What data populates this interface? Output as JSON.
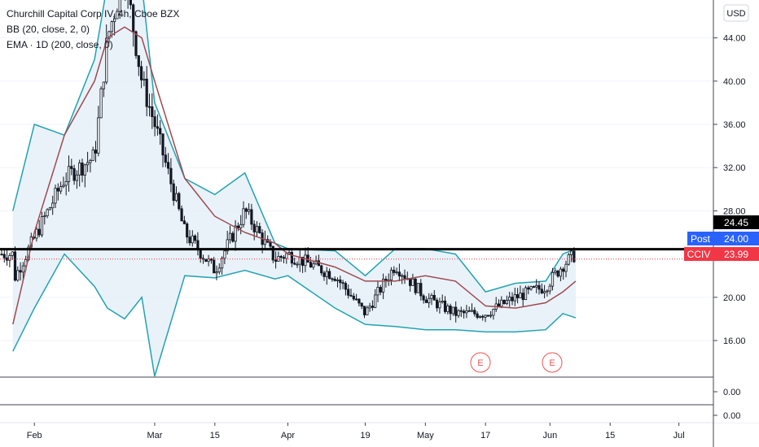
{
  "header": {
    "symbol_line": "Churchill Capital Corp IV, 4h, Cboe BZX",
    "indicator_bb": "BB (20, close, 2, 0)",
    "indicator_ema": "EMA · 1D (200, close, 0)"
  },
  "price_axis": {
    "currency": "USD",
    "labels": [
      "44.00",
      "40.00",
      "36.00",
      "32.00",
      "28.00",
      "20.00",
      "16.00"
    ],
    "sub_labels": [
      "0.00",
      "0.00"
    ]
  },
  "markers": {
    "level": {
      "value": "24.45",
      "color": "#000000"
    },
    "post": {
      "label": "Post",
      "value": "24.00",
      "color": "#2962ff"
    },
    "last": {
      "label": "CCIV",
      "value": "23.99",
      "color": "#f23645"
    },
    "earnings": [
      "E",
      "E"
    ]
  },
  "time_axis": {
    "labels": [
      "Feb",
      "Mar",
      "15",
      "Apr",
      "19",
      "May",
      "17",
      "Jun",
      "15",
      "Jul"
    ]
  },
  "colors": {
    "up": "#26a69a",
    "down": "#ef5350",
    "candle": "#131722",
    "bb": "#22a2b0",
    "bb_fill": "#e3eff7",
    "ema": "#9e4a50"
  },
  "chart_data": {
    "type": "candlestick",
    "title": "Churchill Capital Corp IV, 4h, Cboe BZX",
    "ylabel": "USD",
    "ylim": [
      14,
      47
    ],
    "horizontal_line": 24.45,
    "last_price": 23.99,
    "post_price": 24.0,
    "x_dates": [
      "2021-01-27",
      "2021-02-01",
      "2021-02-08",
      "2021-02-15",
      "2021-02-18",
      "2021-02-22",
      "2021-02-26",
      "2021-03-01",
      "2021-03-08",
      "2021-03-15",
      "2021-03-22",
      "2021-03-29",
      "2021-04-01",
      "2021-04-12",
      "2021-04-19",
      "2021-04-26",
      "2021-05-03",
      "2021-05-10",
      "2021-05-17",
      "2021-05-24",
      "2021-05-31",
      "2021-06-04",
      "2021-06-07"
    ],
    "close": [
      21.5,
      25.5,
      31.0,
      33.0,
      44.0,
      50.0,
      40.0,
      36.0,
      26.0,
      22.5,
      28.0,
      23.5,
      24.0,
      22.0,
      18.5,
      23.0,
      20.0,
      18.5,
      18.5,
      20.0,
      21.0,
      23.0,
      23.99
    ],
    "ema_200": [
      17.5,
      26.0,
      35.0,
      40.0,
      44.0,
      45.0,
      44.0,
      40.0,
      31.0,
      27.5,
      26.0,
      25.0,
      24.0,
      22.8,
      21.5,
      21.5,
      22.0,
      21.5,
      19.2,
      19.0,
      19.5,
      20.5,
      21.5
    ],
    "bb_upper": [
      28.0,
      36.0,
      35.0,
      42.0,
      60.0,
      60.0,
      55.0,
      38.0,
      31.0,
      29.5,
      31.5,
      25.0,
      24.5,
      24.3,
      22.0,
      24.5,
      24.5,
      24.0,
      20.5,
      21.3,
      21.5,
      24.0,
      24.5
    ],
    "bb_lower": [
      15.0,
      19.0,
      24.0,
      21.0,
      19.0,
      18.0,
      20.0,
      12.0,
      22.0,
      21.8,
      22.5,
      21.7,
      22.0,
      19.0,
      17.5,
      17.3,
      17.0,
      17.0,
      16.8,
      16.8,
      17.0,
      18.5,
      18.1
    ]
  }
}
